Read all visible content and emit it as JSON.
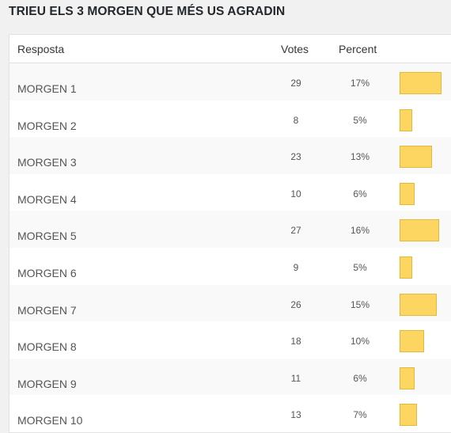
{
  "title": "TRIEU ELS 3 MORGEN QUE MÉS US AGRADIN",
  "table": {
    "headers": {
      "answer": "Resposta",
      "votes": "Votes",
      "percent": "Percent"
    },
    "bar_color": "#fcd661",
    "rows": [
      {
        "answer": "MORGEN 1",
        "votes": "29",
        "percent": "17%",
        "fraction": 0.17
      },
      {
        "answer": "MORGEN 2",
        "votes": "8",
        "percent": "5%",
        "fraction": 0.05
      },
      {
        "answer": "MORGEN 3",
        "votes": "23",
        "percent": "13%",
        "fraction": 0.13
      },
      {
        "answer": "MORGEN 4",
        "votes": "10",
        "percent": "6%",
        "fraction": 0.06
      },
      {
        "answer": "MORGEN 5",
        "votes": "27",
        "percent": "16%",
        "fraction": 0.16
      },
      {
        "answer": "MORGEN 6",
        "votes": "9",
        "percent": "5%",
        "fraction": 0.05
      },
      {
        "answer": "MORGEN 7",
        "votes": "26",
        "percent": "15%",
        "fraction": 0.15
      },
      {
        "answer": "MORGEN 8",
        "votes": "18",
        "percent": "10%",
        "fraction": 0.1
      },
      {
        "answer": "MORGEN 9",
        "votes": "11",
        "percent": "6%",
        "fraction": 0.06
      },
      {
        "answer": "MORGEN 10",
        "votes": "13",
        "percent": "7%",
        "fraction": 0.07
      }
    ]
  }
}
